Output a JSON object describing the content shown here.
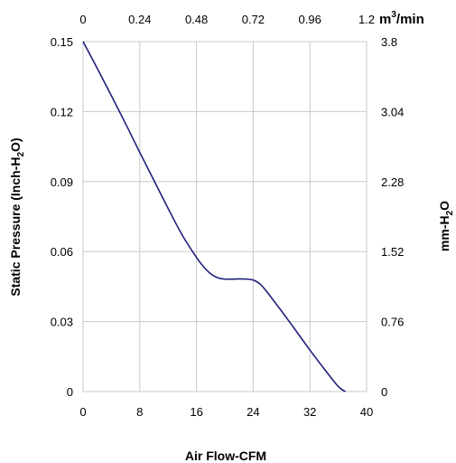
{
  "chart_data": {
    "type": "line",
    "title": "",
    "xlabel": "Air Flow-CFM",
    "ylabel": "Static Pressure (Inch-H2O)",
    "ylabel_parts": [
      "Static Pressure (Inch-H",
      "2",
      "O)"
    ],
    "xlim": [
      0,
      40
    ],
    "ylim": [
      0,
      0.15
    ],
    "x_ticks": [
      "0",
      "8",
      "16",
      "24",
      "32",
      "40"
    ],
    "y_ticks": [
      "0",
      "0.03",
      "0.06",
      "0.09",
      "0.12",
      "0.15"
    ],
    "secondary_x": {
      "label": "m3/min",
      "label_parts": [
        "m",
        "3",
        "/min"
      ],
      "range": [
        0,
        1.2
      ],
      "ticks": [
        "0",
        "0.24",
        "0.48",
        "0.72",
        "0.96",
        "1.2"
      ]
    },
    "secondary_y": {
      "label": "mm-H2O",
      "label_parts": [
        "mm-H",
        "2",
        "O"
      ],
      "range": [
        0,
        3.8
      ],
      "ticks": [
        "0",
        "0.76",
        "1.52",
        "2.28",
        "3.04",
        "3.8"
      ]
    },
    "grid": {
      "vertical": true,
      "horizontal": true
    },
    "series": [
      {
        "color": "#1f1f7a",
        "x": [
          0,
          2,
          4,
          6,
          8,
          10,
          12,
          14,
          16,
          17,
          18,
          19,
          20,
          21,
          22,
          23,
          24,
          25,
          26,
          27,
          28,
          30,
          32,
          34,
          36,
          37
        ],
        "y": [
          0.15,
          0.1385,
          0.1268,
          0.1148,
          0.1025,
          0.0905,
          0.0785,
          0.067,
          0.0575,
          0.0535,
          0.0505,
          0.0488,
          0.0482,
          0.0482,
          0.0483,
          0.0482,
          0.0478,
          0.046,
          0.0425,
          0.0385,
          0.0345,
          0.0262,
          0.0178,
          0.0098,
          0.0022,
          0
        ]
      }
    ]
  }
}
